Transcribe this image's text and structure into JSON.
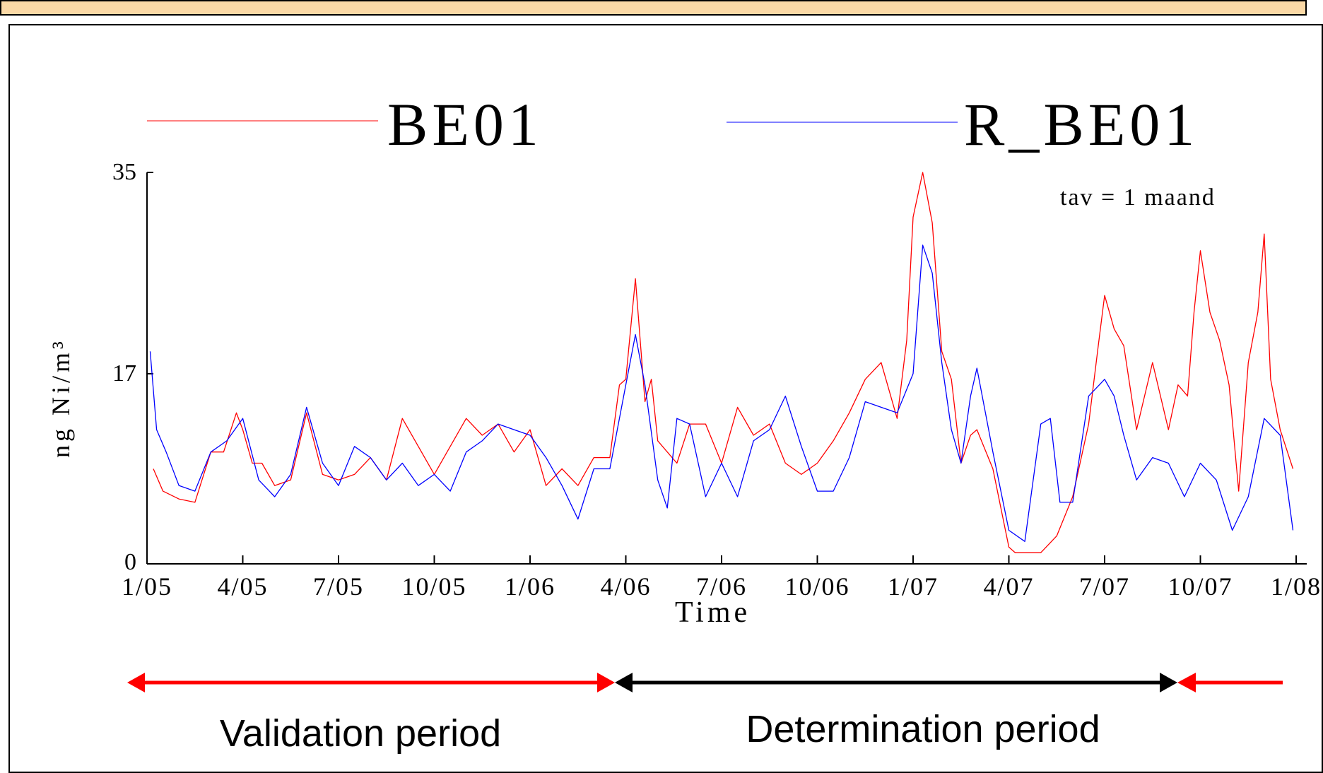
{
  "colors": {
    "be01": "#ff0000",
    "r_be01": "#0000ff",
    "validation": "#ff0000",
    "determination": "#000000",
    "top_band": "#fbd9a6"
  },
  "chart_data": {
    "type": "line",
    "ylabel": "ng Ni/m³",
    "xlabel": "Time",
    "annotation": "tav = 1 maand",
    "ylim": [
      0,
      35
    ],
    "yticks": [
      "0",
      "17",
      "35"
    ],
    "ytick_values": [
      0,
      17,
      35
    ],
    "xticks": [
      "1/05",
      "4/05",
      "7/05",
      "10/05",
      "1/06",
      "4/06",
      "7/06",
      "10/06",
      "1/07",
      "4/07",
      "7/07",
      "10/07",
      "1/08"
    ],
    "x_months": [
      0,
      3,
      6,
      9,
      12,
      15,
      18,
      21,
      24,
      27,
      30,
      33,
      36
    ],
    "x_range_months": [
      0,
      36
    ],
    "legend_position": "top",
    "series": [
      {
        "name": "BE01",
        "x": [
          0.2,
          0.5,
          1.0,
          1.5,
          2.0,
          2.4,
          2.8,
          3.0,
          3.3,
          3.6,
          4.0,
          4.5,
          5.0,
          5.5,
          6.0,
          6.5,
          7.0,
          7.5,
          8.0,
          8.5,
          9.0,
          9.5,
          10.0,
          10.5,
          11.0,
          11.5,
          12.0,
          12.5,
          13.0,
          13.5,
          14.0,
          14.5,
          14.8,
          15.0,
          15.3,
          15.6,
          15.8,
          16.0,
          16.3,
          16.6,
          17.0,
          17.5,
          18.0,
          18.5,
          19.0,
          19.5,
          20.0,
          20.5,
          21.0,
          21.5,
          22.0,
          22.5,
          23.0,
          23.5,
          23.8,
          24.0,
          24.3,
          24.6,
          24.9,
          25.2,
          25.5,
          25.8,
          26.0,
          26.5,
          27.0,
          27.2,
          27.5,
          28.0,
          28.5,
          29.0,
          29.5,
          29.8,
          30.0,
          30.3,
          30.6,
          31.0,
          31.5,
          32.0,
          32.3,
          32.6,
          32.8,
          33.0,
          33.3,
          33.6,
          33.9,
          34.2,
          34.5,
          34.8,
          35.0,
          35.2,
          35.5,
          35.9
        ],
        "values": [
          8.5,
          6.5,
          5.8,
          5.5,
          10.0,
          10.0,
          13.5,
          12.0,
          9.0,
          9.0,
          7.0,
          7.5,
          13.5,
          8.0,
          7.5,
          8.0,
          9.5,
          7.5,
          13.0,
          10.5,
          8.0,
          10.5,
          13.0,
          11.5,
          12.5,
          10.0,
          12.0,
          7.0,
          8.5,
          7.0,
          9.5,
          9.5,
          16.0,
          16.5,
          25.5,
          14.5,
          16.5,
          11.0,
          10.0,
          9.0,
          12.5,
          12.5,
          9.0,
          14.0,
          11.5,
          12.5,
          9.0,
          8.0,
          9.0,
          11.0,
          13.5,
          16.5,
          18.0,
          13.0,
          20.0,
          31.0,
          35.0,
          30.5,
          19.0,
          16.5,
          9.0,
          11.5,
          12.0,
          8.5,
          1.5,
          1.0,
          1.0,
          1.0,
          2.5,
          6.0,
          12.5,
          19.5,
          24.0,
          21.0,
          19.5,
          12.0,
          18.0,
          12.0,
          16.0,
          15.0,
          22.5,
          28.0,
          22.5,
          20.0,
          16.0,
          6.5,
          18.0,
          22.5,
          29.5,
          16.5,
          12.0,
          8.5
        ]
      },
      {
        "name": "R_BE01",
        "x": [
          0.1,
          0.3,
          0.6,
          1.0,
          1.5,
          2.0,
          2.5,
          3.0,
          3.5,
          4.0,
          4.5,
          5.0,
          5.5,
          6.0,
          6.5,
          7.0,
          7.5,
          8.0,
          8.5,
          9.0,
          9.5,
          10.0,
          10.5,
          11.0,
          11.5,
          12.0,
          12.5,
          13.0,
          13.5,
          14.0,
          14.5,
          15.0,
          15.3,
          15.6,
          16.0,
          16.3,
          16.6,
          17.0,
          17.5,
          18.0,
          18.5,
          19.0,
          19.5,
          20.0,
          20.5,
          21.0,
          21.5,
          22.0,
          22.5,
          23.0,
          23.5,
          24.0,
          24.3,
          24.6,
          24.9,
          25.2,
          25.5,
          25.8,
          26.0,
          26.5,
          27.0,
          27.5,
          28.0,
          28.3,
          28.6,
          29.0,
          29.5,
          30.0,
          30.3,
          30.6,
          31.0,
          31.5,
          32.0,
          32.5,
          33.0,
          33.5,
          34.0,
          34.5,
          35.0,
          35.5,
          35.9
        ],
        "values": [
          19.0,
          12.0,
          10.0,
          7.0,
          6.5,
          10.0,
          11.0,
          13.0,
          7.5,
          6.0,
          8.0,
          14.0,
          9.0,
          7.0,
          10.5,
          9.5,
          7.5,
          9.0,
          7.0,
          8.0,
          6.5,
          10.0,
          11.0,
          12.5,
          12.0,
          11.5,
          9.5,
          7.0,
          4.0,
          8.5,
          8.5,
          16.0,
          20.5,
          16.0,
          7.5,
          5.0,
          13.0,
          12.5,
          6.0,
          9.0,
          6.0,
          11.0,
          12.0,
          15.0,
          10.5,
          6.5,
          6.5,
          9.5,
          14.5,
          14.0,
          13.5,
          17.0,
          28.5,
          26.0,
          18.0,
          12.0,
          9.0,
          15.0,
          17.5,
          10.0,
          3.0,
          2.0,
          12.5,
          13.0,
          5.5,
          5.5,
          15.0,
          16.5,
          15.0,
          11.5,
          7.5,
          9.5,
          9.0,
          6.0,
          9.0,
          7.5,
          3.0,
          6.0,
          13.0,
          11.5,
          3.0
        ]
      }
    ]
  },
  "legend": {
    "series1": "BE01",
    "series2": "R_BE01"
  },
  "periods": {
    "validation": "Validation period",
    "determination": "Determination period"
  }
}
